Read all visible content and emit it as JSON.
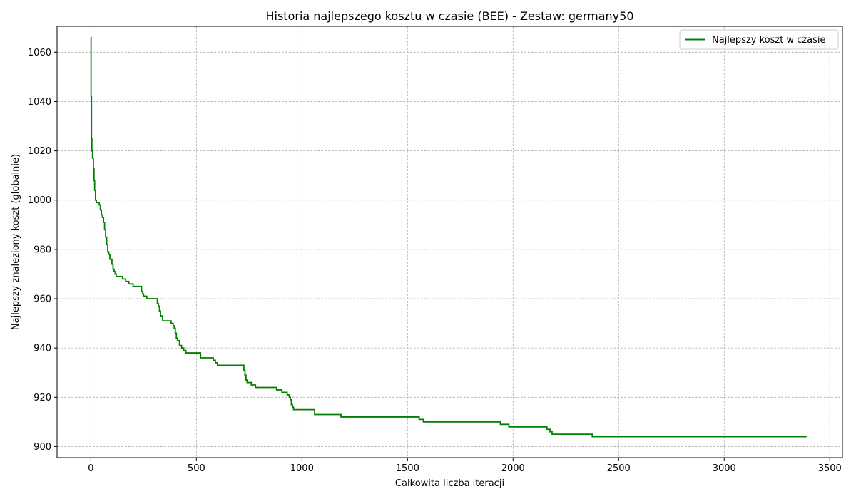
{
  "chart_data": {
    "type": "line",
    "title": "Historia najlepszego kosztu w czasie (BEE) - Zestaw: germany50",
    "xlabel": "Całkowita liczba iteracji",
    "ylabel": "Najlepszy znaleziony koszt (globalnie)",
    "xlim": [
      -160,
      3560
    ],
    "ylim": [
      895.5,
      1070.5
    ],
    "xticks": [
      0,
      500,
      1000,
      1500,
      2000,
      2500,
      3000,
      3500
    ],
    "yticks": [
      900,
      920,
      940,
      960,
      980,
      1000,
      1020,
      1040,
      1060
    ],
    "grid": true,
    "legend_position": "upper right",
    "series": [
      {
        "name": "Najlepszy koszt w czasie",
        "color": "#008000",
        "step": true,
        "x": [
          0,
          1,
          3,
          5,
          8,
          12,
          15,
          18,
          22,
          26,
          40,
          45,
          50,
          55,
          60,
          65,
          70,
          75,
          80,
          85,
          90,
          100,
          105,
          110,
          115,
          120,
          130,
          150,
          165,
          180,
          195,
          200,
          220,
          240,
          245,
          250,
          265,
          310,
          315,
          320,
          325,
          330,
          340,
          380,
          385,
          390,
          395,
          400,
          405,
          410,
          420,
          430,
          440,
          450,
          460,
          475,
          485,
          520,
          580,
          590,
          600,
          720,
          725,
          730,
          735,
          740,
          760,
          780,
          800,
          810,
          815,
          880,
          905,
          915,
          930,
          940,
          945,
          950,
          955,
          960,
          975,
          1060,
          1075,
          1185,
          1200,
          1555,
          1575,
          1590,
          1605,
          1940,
          1980,
          2000,
          2160,
          2175,
          2185,
          2375,
          2385,
          2700,
          3390
        ],
        "y": [
          1066,
          1042,
          1025,
          1020,
          1017,
          1013,
          1008,
          1004,
          1000,
          999,
          998,
          996,
          994,
          993,
          991,
          988,
          985,
          982,
          979,
          978,
          976,
          974,
          972,
          971,
          970,
          969,
          969,
          968,
          967,
          966,
          966,
          965,
          965,
          963,
          962,
          961,
          960,
          960,
          958,
          957,
          955,
          953,
          951,
          950,
          950,
          949,
          948,
          946,
          944,
          943,
          941,
          940,
          939,
          938,
          938,
          938,
          938,
          936,
          935,
          934,
          933,
          933,
          931,
          929,
          927,
          926,
          925,
          924,
          924,
          924,
          924,
          923,
          922,
          922,
          921,
          920,
          919,
          917,
          916,
          915,
          915,
          913,
          913,
          912,
          912,
          911,
          910,
          910,
          910,
          909,
          908,
          908,
          907,
          906,
          905,
          904,
          904,
          904,
          904
        ]
      }
    ]
  }
}
